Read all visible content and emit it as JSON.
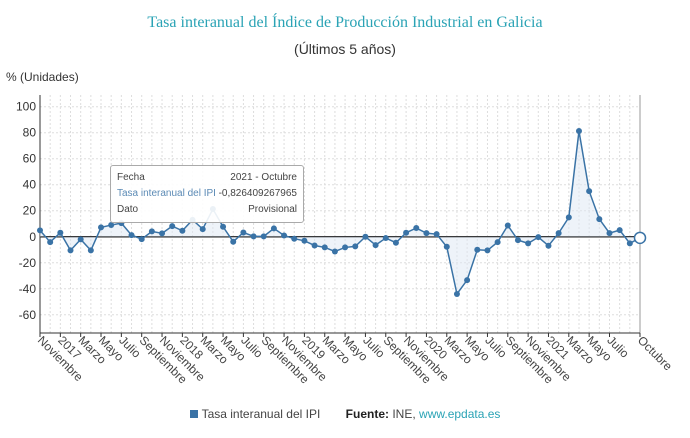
{
  "chart_data": {
    "type": "line",
    "title": "Tasa interanual del Índice de Producción Industrial en Galicia",
    "subtitle": "(Últimos 5 años)",
    "ylabel": "% (Unidades)",
    "ylim": [
      -74,
      109
    ],
    "yticks": [
      100,
      80,
      60,
      40,
      20,
      0,
      -20,
      -40,
      -60
    ],
    "grid": true,
    "area_fill_to_zero": true,
    "color": "#3a73a6",
    "x_start": "2016-11",
    "x_end": "2021-10",
    "xtick_labels": [
      {
        "i": 0,
        "label": "Noviembre"
      },
      {
        "i": 2,
        "label": "2017"
      },
      {
        "i": 4,
        "label": "Marzo"
      },
      {
        "i": 6,
        "label": "Mayo"
      },
      {
        "i": 8,
        "label": "Julio"
      },
      {
        "i": 10,
        "label": "Septiembre"
      },
      {
        "i": 12,
        "label": "Noviembre"
      },
      {
        "i": 14,
        "label": "2018"
      },
      {
        "i": 16,
        "label": "Marzo"
      },
      {
        "i": 18,
        "label": "Mayo"
      },
      {
        "i": 20,
        "label": "Julio"
      },
      {
        "i": 22,
        "label": "Septiembre"
      },
      {
        "i": 24,
        "label": "Noviembre"
      },
      {
        "i": 26,
        "label": "2019"
      },
      {
        "i": 28,
        "label": "Marzo"
      },
      {
        "i": 30,
        "label": "Mayo"
      },
      {
        "i": 32,
        "label": "Julio"
      },
      {
        "i": 34,
        "label": "Septiembre"
      },
      {
        "i": 36,
        "label": "Noviembre"
      },
      {
        "i": 38,
        "label": "2020"
      },
      {
        "i": 40,
        "label": "Marzo"
      },
      {
        "i": 42,
        "label": "Mayo"
      },
      {
        "i": 44,
        "label": "Julio"
      },
      {
        "i": 46,
        "label": "Septiembre"
      },
      {
        "i": 48,
        "label": "Noviembre"
      },
      {
        "i": 50,
        "label": "2021"
      },
      {
        "i": 52,
        "label": "Marzo"
      },
      {
        "i": 54,
        "label": "Mayo"
      },
      {
        "i": 56,
        "label": "Julio"
      },
      {
        "i": 59,
        "label": "Octubre"
      }
    ],
    "series": [
      {
        "name": "Tasa interanual del IPI",
        "values": [
          4.9,
          -4.1,
          3.1,
          -10.5,
          -2,
          -10.5,
          7.2,
          9,
          10.5,
          1.3,
          -1.8,
          4.1,
          2.6,
          8.2,
          4.6,
          13,
          5.9,
          21.3,
          7.7,
          -3.8,
          3.3,
          0.3,
          0.3,
          6.4,
          1,
          -1.5,
          -3.1,
          -6.7,
          -8.2,
          -11.3,
          -8.2,
          -7.4,
          0,
          -6.4,
          -1,
          -4.6,
          3.1,
          6.7,
          2.8,
          2,
          -7.7,
          -44,
          -33.3,
          -10,
          -10.5,
          -4.1,
          8.7,
          -2.6,
          -5.1,
          -0.3,
          -6.9,
          2.8,
          14.9,
          81.3,
          35.1,
          13.6,
          2.8,
          5.1,
          -5.1,
          -0.826409267965
        ]
      }
    ]
  },
  "tooltip": {
    "fecha_label": "Fecha",
    "fecha_value": "2021 - Octubre",
    "serie_label": "Tasa interanual del IPI",
    "serie_value": "-0,826409267965",
    "dato_label": "Dato",
    "dato_value": "Provisional"
  },
  "legend": {
    "series": "Tasa interanual del IPI",
    "source_label": "Fuente:",
    "source_text": "INE,",
    "source_link": "www.epdata.es"
  }
}
